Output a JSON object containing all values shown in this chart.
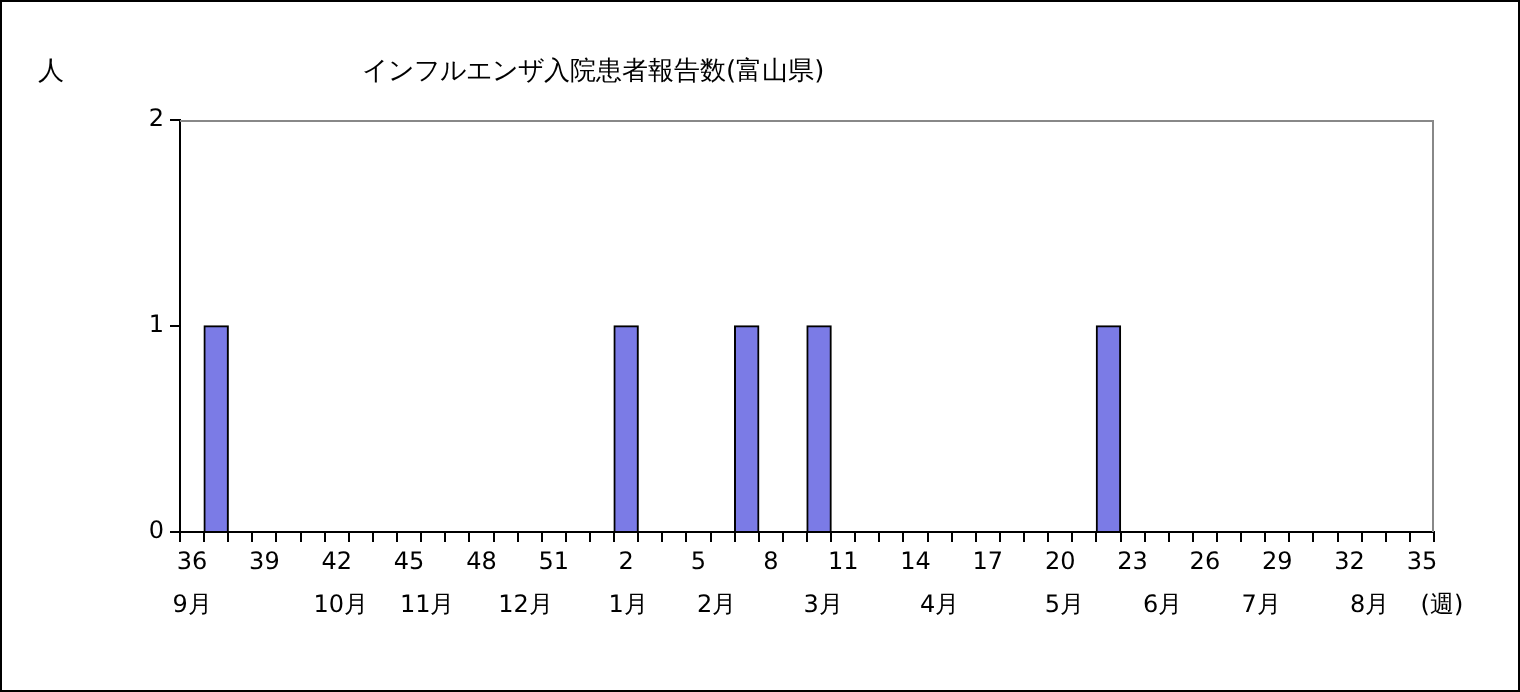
{
  "chart_data": {
    "type": "bar",
    "title": "インフルエンザ入院患者報告数(富山県)",
    "ylabel": "人",
    "categories": [
      "36",
      null,
      null,
      "39",
      null,
      null,
      "42",
      null,
      null,
      "45",
      null,
      null,
      "48",
      null,
      null,
      "51",
      null,
      null,
      "2",
      null,
      null,
      "5",
      null,
      null,
      "8",
      null,
      null,
      "11",
      null,
      null,
      "14",
      null,
      null,
      "17",
      null,
      null,
      "20",
      null,
      null,
      "23",
      null,
      null,
      "26",
      null,
      null,
      "29",
      null,
      null,
      "32",
      null,
      null,
      "35"
    ],
    "values": [
      0,
      1,
      0,
      0,
      0,
      0,
      0,
      0,
      0,
      0,
      0,
      0,
      0,
      0,
      0,
      0,
      0,
      0,
      1,
      0,
      0,
      0,
      0,
      1,
      0,
      0,
      1,
      0,
      0,
      0,
      0,
      0,
      0,
      0,
      0,
      0,
      0,
      0,
      1,
      0,
      0,
      0,
      0,
      0,
      0,
      0,
      0,
      0,
      0,
      0,
      0,
      0
    ],
    "color": "#7b7be6",
    "ylim": [
      0,
      2
    ],
    "yticks": [
      0,
      1,
      2
    ],
    "grid": false,
    "legend": false,
    "annotations": [
      "9月",
      "10月",
      "11月",
      "12月",
      "1月",
      "2月",
      "3月",
      "4月",
      "5月",
      "6月",
      "7月",
      "8月",
      "(週)"
    ]
  }
}
